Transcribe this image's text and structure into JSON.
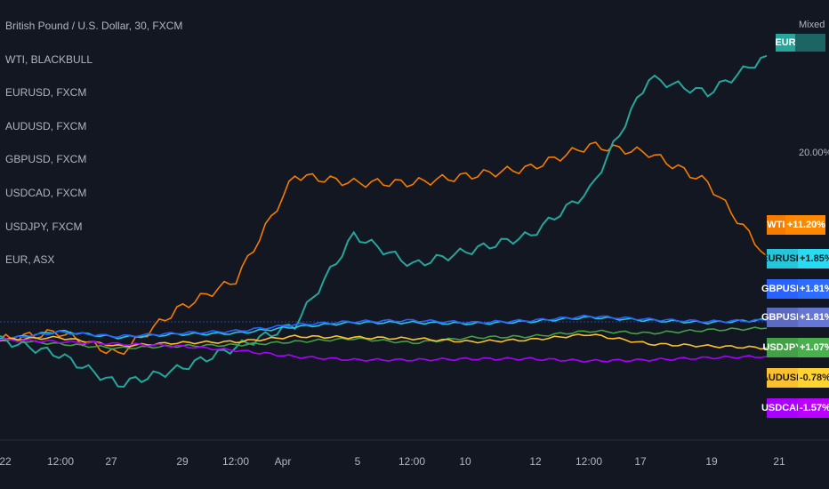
{
  "legend": {
    "main_symbol": "British Pound / U.S. Dollar, 30, FXCM",
    "items": [
      "WTI, BLACKBULL",
      "EURUSD, FXCM",
      "AUDUSD, FXCM",
      "GBPUSD, FXCM",
      "USDCAD, FXCM",
      "USDJPY, FXCM",
      "EUR, ASX"
    ]
  },
  "scale_mode": "Mixed",
  "y_tick": "20.00%",
  "top_badge": {
    "symbol": "EUR",
    "color": "#26a69a"
  },
  "badges": [
    {
      "symbol": "WTI",
      "value": "+11.20%",
      "bg": "#f57c00",
      "fg": "#ffffff"
    },
    {
      "symbol": "EURUSD",
      "value": "+1.85%",
      "bg": "#26c6da",
      "fg": "#0b1b20"
    },
    {
      "symbol": "GBPUSD",
      "value": "+1.81%",
      "bg": "#2962ff",
      "fg": "#ffffff"
    },
    {
      "symbol": "GBPUSD",
      "value": "+1.81%",
      "bg": "#5c6bc0",
      "fg": "#ffffff"
    },
    {
      "symbol": "USDJPY",
      "value": "+1.07%",
      "bg": "#43a047",
      "fg": "#ffffff"
    },
    {
      "symbol": "AUDUSD",
      "value": "-0.78%",
      "bg": "#fbc02d",
      "fg": "#1a1a1a"
    },
    {
      "symbol": "USDCAD",
      "value": "-1.57%",
      "bg": "#aa00ff",
      "fg": "#ffffff"
    }
  ],
  "x_labels": [
    "22",
    "12:00",
    "27",
    "29",
    "12:00",
    "Apr",
    "5",
    "12:00",
    "10",
    "12",
    "12:00",
    "17",
    "19",
    "21"
  ],
  "chart_data": {
    "type": "line",
    "x": [
      "22",
      "12:00",
      "27",
      "29",
      "12:00",
      "Apr",
      "5",
      "12:00",
      "10",
      "12",
      "12:00",
      "17",
      "19",
      "21"
    ],
    "ylabel": "",
    "y_unit": "%",
    "series": [
      {
        "name": "WTI",
        "color": "#f57c00",
        "values": [
          0,
          1,
          -2,
          4,
          8,
          22,
          21,
          21,
          22,
          23,
          26,
          25,
          21,
          11.2
        ]
      },
      {
        "name": "EUR",
        "color": "#26a69a",
        "values": [
          0,
          -2,
          -6,
          -4,
          -1,
          2,
          14,
          10,
          12,
          14,
          20,
          35,
          33,
          38
        ]
      },
      {
        "name": "EURUSD",
        "color": "#26c6da",
        "values": [
          0,
          0.8,
          0.2,
          0.5,
          0.6,
          1.2,
          1.6,
          1.6,
          1.5,
          1.7,
          2.1,
          1.8,
          1.6,
          1.85
        ]
      },
      {
        "name": "GBPUSD",
        "color": "#2962ff",
        "values": [
          0,
          0.7,
          0.3,
          0.6,
          0.8,
          1.4,
          1.7,
          1.8,
          1.6,
          1.8,
          2.2,
          1.9,
          1.7,
          1.81
        ]
      },
      {
        "name": "USDJPY",
        "color": "#43a047",
        "values": [
          0,
          -0.4,
          -0.8,
          -0.6,
          -0.5,
          -0.2,
          0.1,
          -0.3,
          0.2,
          0.3,
          0.8,
          0.6,
          0.9,
          1.07
        ]
      },
      {
        "name": "AUDUSD",
        "color": "#fbc02d",
        "values": [
          0,
          0.2,
          -0.6,
          -0.3,
          -0.2,
          0.3,
          0.2,
          0.1,
          -0.2,
          0.0,
          0.5,
          -0.4,
          -0.6,
          -0.78
        ]
      },
      {
        "name": "USDCAD",
        "color": "#aa00ff",
        "values": [
          0,
          -0.2,
          -0.4,
          -0.6,
          -1.0,
          -1.6,
          -1.9,
          -1.9,
          -1.8,
          -1.8,
          -2.0,
          -1.9,
          -1.7,
          -1.57
        ]
      }
    ]
  }
}
